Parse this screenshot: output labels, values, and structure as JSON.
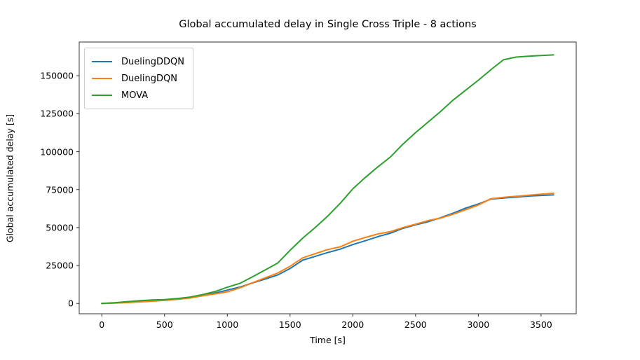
{
  "figure": {
    "title": "Global accumulated delay in Single Cross Triple - 8 actions",
    "xlabel": "Time [s]",
    "ylabel": "Global accumulated delay [s]"
  },
  "chart_data": {
    "type": "line",
    "title": "Global accumulated delay in Single Cross Triple - 8 actions",
    "xlabel": "Time [s]",
    "ylabel": "Global accumulated delay [s]",
    "xlim": [
      -180,
      3780
    ],
    "ylim": [
      -6800,
      172200
    ],
    "xticks": [
      0,
      500,
      1000,
      1500,
      2000,
      2500,
      3000,
      3500
    ],
    "yticks": [
      0,
      25000,
      50000,
      75000,
      100000,
      125000,
      150000
    ],
    "grid": false,
    "legend_position": "upper left",
    "x": [
      0,
      100,
      200,
      300,
      400,
      500,
      600,
      700,
      800,
      900,
      1000,
      1100,
      1200,
      1300,
      1400,
      1500,
      1600,
      1700,
      1800,
      1900,
      2000,
      2100,
      2200,
      2300,
      2400,
      2500,
      2600,
      2700,
      2800,
      2900,
      3000,
      3100,
      3200,
      3300,
      3400,
      3500,
      3600
    ],
    "series": [
      {
        "name": "DuelingDDQN",
        "color": "#1f77b4",
        "values": [
          0,
          300,
          700,
          1100,
          1600,
          2200,
          2900,
          3800,
          5200,
          6800,
          8800,
          10800,
          13500,
          16000,
          18700,
          23000,
          28500,
          31000,
          33500,
          35800,
          38800,
          41300,
          44000,
          46300,
          49500,
          51800,
          53800,
          56500,
          59500,
          62800,
          65500,
          68700,
          69400,
          70000,
          70700,
          71100,
          71500
        ]
      },
      {
        "name": "DuelingDQN",
        "color": "#ff7f0e",
        "values": [
          0,
          250,
          600,
          1000,
          1500,
          2000,
          2700,
          3600,
          5000,
          6300,
          7600,
          10300,
          13600,
          16800,
          20000,
          24500,
          30000,
          32800,
          35500,
          37300,
          41000,
          43500,
          45800,
          47300,
          50000,
          52200,
          54600,
          56200,
          58800,
          61800,
          64800,
          69000,
          69900,
          70600,
          71300,
          72000,
          72600
        ]
      },
      {
        "name": "MOVA",
        "color": "#2ca02c",
        "values": [
          0,
          500,
          1200,
          1800,
          2300,
          2500,
          3200,
          4200,
          5800,
          7800,
          10700,
          13200,
          17500,
          22000,
          26500,
          35000,
          43000,
          50000,
          57500,
          66000,
          75500,
          83000,
          90000,
          96500,
          105000,
          112500,
          119500,
          126500,
          134000,
          140500,
          147000,
          154000,
          160500,
          162300,
          162900,
          163300,
          163700
        ]
      }
    ]
  }
}
